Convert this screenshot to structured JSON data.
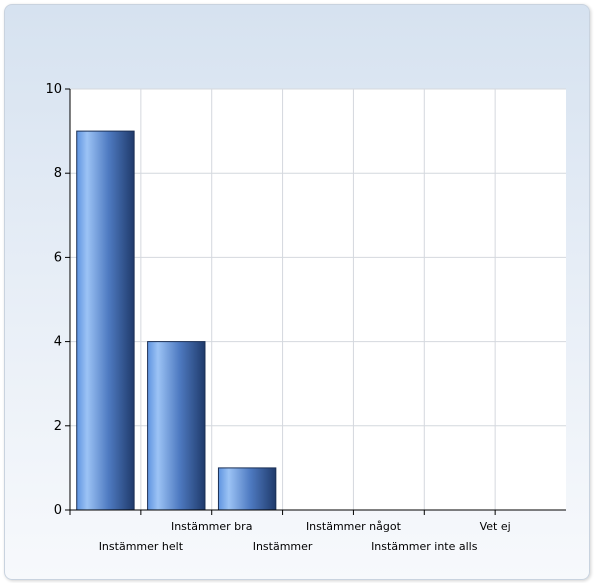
{
  "chart_data": {
    "type": "bar",
    "title": "",
    "xlabel": "",
    "ylabel": "",
    "categories": [
      "Instämmer helt",
      "Instämmer bra",
      "Instämmer",
      "Instämmer något",
      "Instämmer inte alls",
      "Vet ej"
    ],
    "values": [
      9,
      4,
      1,
      0,
      0,
      0
    ],
    "ylim": [
      0,
      10
    ],
    "yticks": [
      "0",
      "2",
      "4",
      "6",
      "8",
      "10"
    ],
    "grid": true,
    "legend": "none",
    "bar_color_light": "#8fb8f0",
    "bar_color_dark": "#1f3a6b"
  }
}
